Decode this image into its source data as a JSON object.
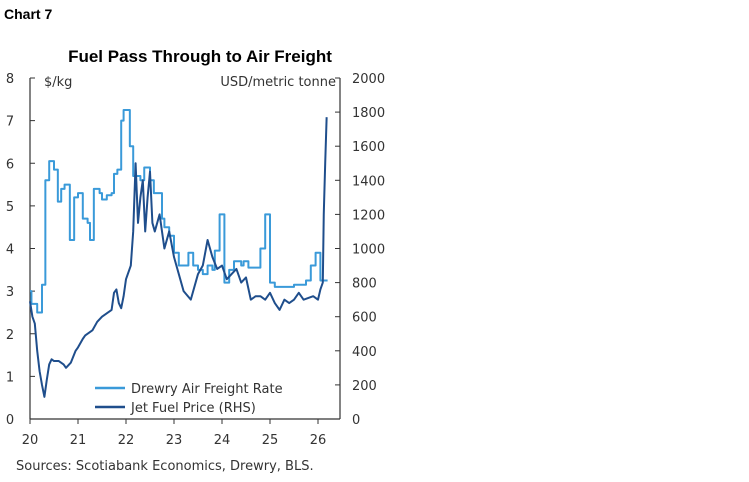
{
  "header": {
    "chart_label": "Chart 7"
  },
  "footer": {
    "sources": "Sources: Scotiabank Economics, Drewry, BLS."
  },
  "chart_data": {
    "type": "line",
    "title": "Fuel Pass Through to Air Freight",
    "ylabel": "$/kg",
    "ylabel_right": "USD/metric tonne",
    "ylim": [
      0,
      8
    ],
    "ylim_right": [
      0,
      2000
    ],
    "xlim": [
      20,
      26.5
    ],
    "x_ticks": [
      "20",
      "21",
      "22",
      "23",
      "24",
      "25",
      "26"
    ],
    "y_ticks": [
      "0",
      "1",
      "2",
      "3",
      "4",
      "5",
      "6",
      "7",
      "8"
    ],
    "y_ticks_right": [
      "0",
      "200",
      "400",
      "600",
      "800",
      "1000",
      "1200",
      "1400",
      "1600",
      "1800",
      "2000"
    ],
    "grid": false,
    "legend": "bottom-center",
    "series": [
      {
        "name": "Drewry Air Freight Rate",
        "axis": "left",
        "color": "#3a9ad9",
        "step": true,
        "x": [
          20.0,
          20.03,
          20.15,
          20.25,
          20.32,
          20.4,
          20.5,
          20.58,
          20.65,
          20.72,
          20.83,
          20.92,
          21.0,
          21.1,
          21.2,
          21.25,
          21.33,
          21.45,
          21.5,
          21.6,
          21.7,
          21.75,
          21.82,
          21.9,
          21.95,
          22.08,
          22.15,
          22.3,
          22.38,
          22.5,
          22.58,
          22.75,
          22.8,
          22.9,
          23.0,
          23.1,
          23.3,
          23.4,
          23.5,
          23.6,
          23.7,
          23.8,
          23.85,
          23.95,
          24.05,
          24.15,
          24.25,
          24.4,
          24.45,
          24.55,
          24.8,
          24.9,
          25.0,
          25.1,
          25.5,
          25.75,
          25.85,
          25.95,
          26.05
        ],
        "y": [
          3.0,
          2.7,
          2.5,
          3.15,
          5.6,
          6.05,
          5.85,
          5.1,
          5.4,
          5.5,
          4.2,
          5.2,
          5.3,
          4.7,
          4.6,
          4.2,
          5.4,
          5.3,
          5.15,
          5.25,
          5.3,
          5.75,
          5.85,
          7.0,
          7.25,
          6.4,
          5.7,
          5.6,
          5.9,
          5.6,
          5.3,
          4.7,
          4.5,
          4.3,
          3.9,
          3.6,
          3.9,
          3.6,
          3.5,
          3.4,
          3.6,
          3.5,
          3.95,
          4.8,
          3.2,
          3.5,
          3.7,
          3.6,
          3.7,
          3.55,
          4.0,
          4.8,
          3.2,
          3.1,
          3.15,
          3.25,
          3.6,
          3.9,
          3.25
        ],
        "x_end": 26.2
      },
      {
        "name": "Jet Fuel Price (RHS)",
        "axis": "right",
        "color": "#1f4e8c",
        "step": false,
        "x": [
          20.0,
          20.05,
          20.1,
          20.15,
          20.2,
          20.25,
          20.3,
          20.35,
          20.4,
          20.45,
          20.5,
          20.6,
          20.7,
          20.75,
          20.85,
          20.95,
          21.0,
          21.1,
          21.15,
          21.3,
          21.4,
          21.5,
          21.6,
          21.7,
          21.75,
          21.8,
          21.85,
          21.9,
          21.95,
          22.0,
          22.1,
          22.15,
          22.2,
          22.25,
          22.3,
          22.35,
          22.4,
          22.45,
          22.5,
          22.55,
          22.6,
          22.7,
          22.8,
          22.9,
          23.0,
          23.1,
          23.2,
          23.35,
          23.5,
          23.6,
          23.7,
          23.8,
          23.9,
          24.0,
          24.1,
          24.2,
          24.3,
          24.4,
          24.5,
          24.6,
          24.7,
          24.8,
          24.9,
          25.0,
          25.1,
          25.2,
          25.3,
          25.4,
          25.5,
          25.6,
          25.7,
          25.8,
          25.9,
          26.0,
          26.05,
          26.1,
          26.12,
          26.15,
          26.18
        ],
        "y": [
          690,
          600,
          560,
          400,
          280,
          200,
          130,
          230,
          320,
          350,
          340,
          340,
          320,
          300,
          330,
          400,
          420,
          470,
          490,
          520,
          570,
          600,
          620,
          640,
          740,
          760,
          680,
          650,
          720,
          820,
          900,
          1100,
          1500,
          1150,
          1300,
          1400,
          1100,
          1300,
          1450,
          1150,
          1100,
          1200,
          1000,
          1100,
          950,
          850,
          750,
          700,
          850,
          900,
          1050,
          950,
          880,
          900,
          820,
          850,
          880,
          800,
          830,
          700,
          720,
          720,
          700,
          740,
          680,
          640,
          700,
          680,
          700,
          740,
          700,
          710,
          720,
          700,
          760,
          800,
          1200,
          1500,
          1770
        ]
      }
    ]
  }
}
